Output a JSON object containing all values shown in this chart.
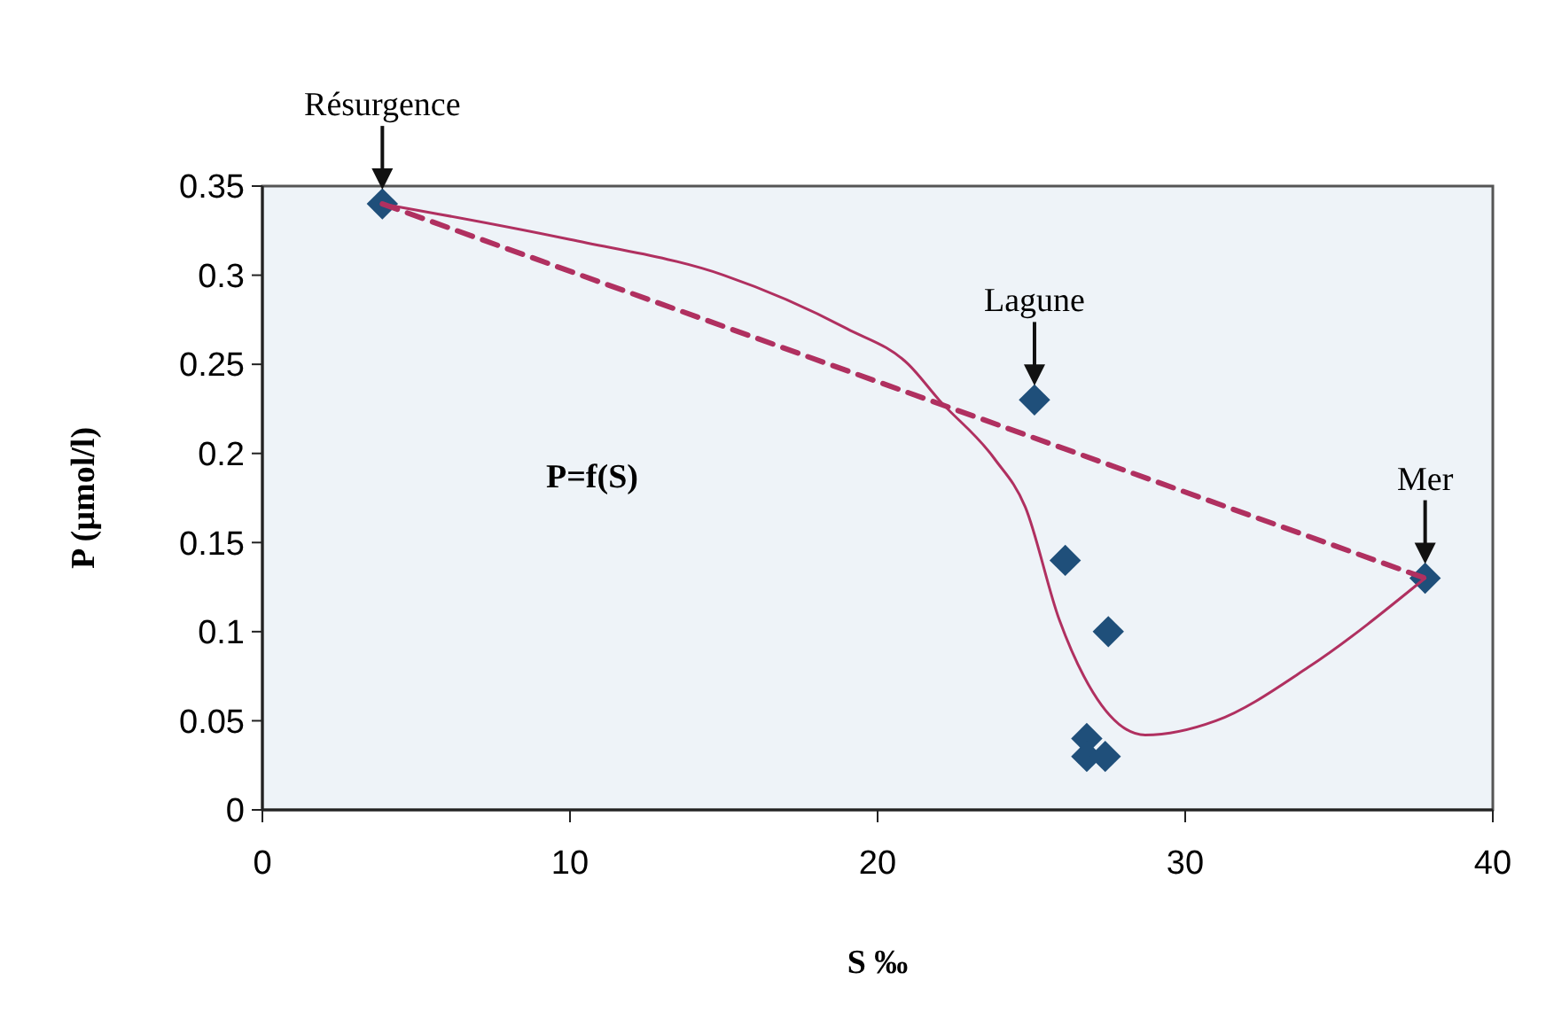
{
  "chart_data": {
    "type": "scatter",
    "xlabel": "S ‰",
    "ylabel": "P (µmol/l)",
    "xlim": [
      0,
      40
    ],
    "xticks": [
      0,
      10,
      20,
      30,
      40
    ],
    "ylim": [
      0,
      0.35
    ],
    "yticks": [
      0,
      0.05,
      0.1,
      0.15,
      0.2,
      0.25,
      0.3,
      0.35
    ],
    "grid": false,
    "series": [
      {
        "color": "#1f4f7a",
        "marker": "diamond",
        "x": [
          3.9,
          25.1,
          26.1,
          27.5,
          26.8,
          26.8,
          27.4,
          37.8
        ],
        "values": [
          0.34,
          0.23,
          0.14,
          0.1,
          0.04,
          0.03,
          0.03,
          0.13
        ]
      },
      {
        "type": "line",
        "color": "#b03060",
        "line_style": "dashed",
        "marker": "none",
        "x": [
          3.9,
          37.8
        ],
        "values": [
          0.34,
          0.13
        ]
      },
      {
        "type": "line",
        "color": "#b03060",
        "line_style": "solid",
        "marker": "none",
        "x": [
          3.9,
          10,
          15,
          19,
          21,
          22,
          23.8,
          24.8,
          25.9,
          27,
          28.7,
          31,
          34,
          37.8
        ],
        "values": [
          0.34,
          0.32,
          0.3,
          0.27,
          0.25,
          0.23,
          0.197,
          0.17,
          0.107,
          0.066,
          0.042,
          0.05,
          0.08,
          0.13
        ]
      }
    ],
    "annotations": [
      {
        "text": "Résurgence",
        "x": 3.9,
        "y": 0.34
      },
      {
        "text": "Lagune",
        "x": 25.1,
        "y": 0.23
      },
      {
        "text": "Mer",
        "x": 37.8,
        "y": 0.13
      },
      "P=f(S)"
    ]
  }
}
